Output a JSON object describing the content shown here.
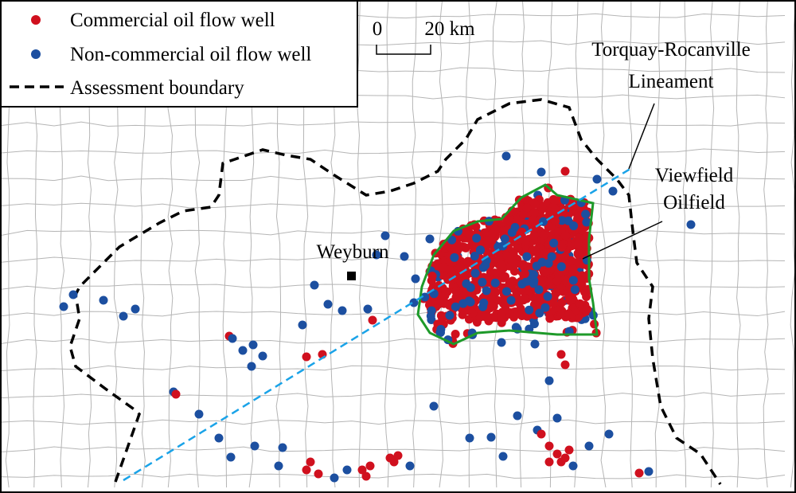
{
  "legend": {
    "items": [
      "Commercial oil flow well",
      "Non-commercial oil flow well",
      "Assessment boundary"
    ]
  },
  "scale_bar": {
    "start": "0",
    "end": "20 km"
  },
  "annotations": {
    "lineament": [
      "Torquay-Rocanville",
      "Lineament"
    ],
    "oilfield": [
      "Viewfield",
      "Oilfield"
    ],
    "town": "Weyburn"
  }
}
